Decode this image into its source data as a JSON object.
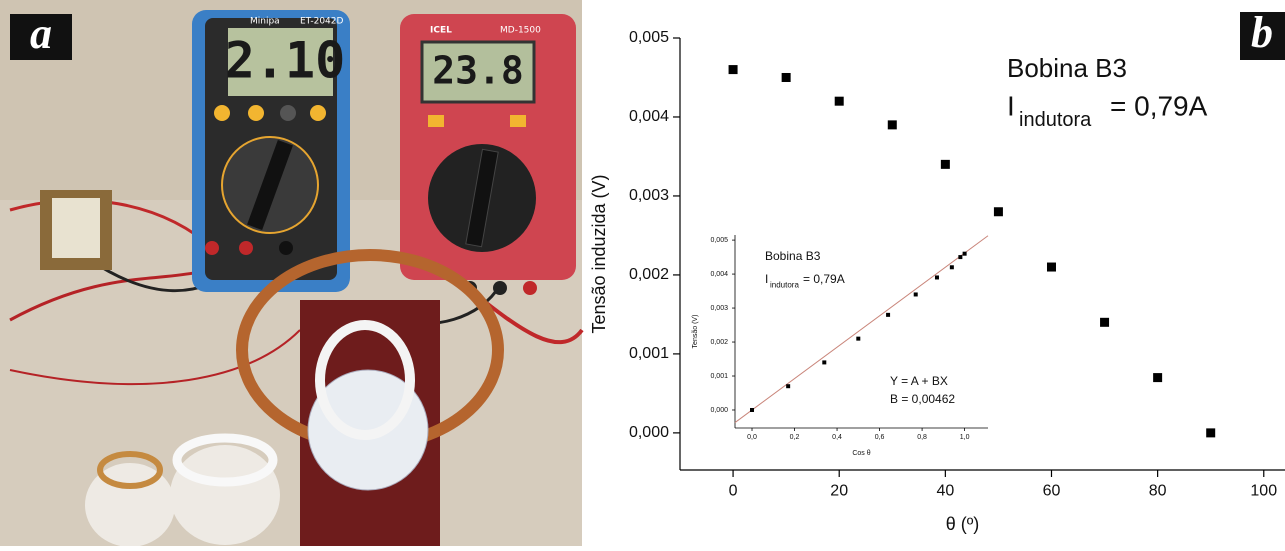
{
  "photo": {
    "label": "a",
    "display_left": "2.10",
    "display_right": "23.8",
    "brand_left": "Minipa",
    "model_left": "ET-2042D",
    "brand_right": "ICEL",
    "model_right": "MD-1500"
  },
  "chart_data": [
    {
      "type": "scatter",
      "panel_label": "b",
      "title": "Bobina B3",
      "annotation_symbol": "I",
      "annotation_subscript": "indutora",
      "annotation_value": "= 0,79A",
      "x_label": "θ (º)",
      "y_label": "Tensão induzida (V)",
      "x": [
        0,
        10,
        20,
        30,
        40,
        50,
        60,
        70,
        80,
        90
      ],
      "series": [
        {
          "color": "#000000",
          "values": [
            0.0046,
            0.0045,
            0.0042,
            0.0039,
            0.0034,
            0.0028,
            0.0021,
            0.0014,
            0.0007,
            0.0
          ]
        }
      ],
      "xlim": [
        -10,
        104
      ],
      "ylim": [
        -0.00047,
        0.005
      ],
      "xticks": [
        0,
        20,
        40,
        60,
        80,
        100
      ],
      "yticks": [
        {
          "value": 0.0,
          "label": "0,000"
        },
        {
          "value": 0.001,
          "label": "0,001"
        },
        {
          "value": 0.002,
          "label": "0,002"
        },
        {
          "value": 0.003,
          "label": "0,003"
        },
        {
          "value": 0.004,
          "label": "0,004"
        },
        {
          "value": 0.005,
          "label": "0,005"
        }
      ]
    },
    {
      "type": "scatter",
      "title": "Bobina B3",
      "annotation_symbol": "I",
      "annotation_subscript": "indutora",
      "annotation_value": "= 0,79A",
      "fit_equation": "Y = A + BX",
      "fit_slope": {
        "value": 0.00462,
        "label": "B = 0,00462"
      },
      "fit_color": "#c9857a",
      "x_label": "Cos θ",
      "y_label": "Tensão (V)",
      "x": [
        0.0,
        0.17,
        0.34,
        0.5,
        0.64,
        0.77,
        0.87,
        0.94,
        0.98,
        1.0
      ],
      "series": [
        {
          "color": "#000000",
          "values": [
            0.0,
            0.0007,
            0.0014,
            0.0021,
            0.0028,
            0.0034,
            0.0039,
            0.0042,
            0.0045,
            0.0046
          ]
        }
      ],
      "xlim": [
        -0.08,
        1.11
      ],
      "ylim": [
        -0.00053,
        0.00515
      ],
      "xticks": [
        {
          "value": 0.0,
          "label": "0,0"
        },
        {
          "value": 0.2,
          "label": "0,2"
        },
        {
          "value": 0.4,
          "label": "0,4"
        },
        {
          "value": 0.6,
          "label": "0,6"
        },
        {
          "value": 0.8,
          "label": "0,8"
        },
        {
          "value": 1.0,
          "label": "1,0"
        }
      ],
      "yticks": [
        {
          "value": 0.0,
          "label": "0,000"
        },
        {
          "value": 0.001,
          "label": "0,001"
        },
        {
          "value": 0.002,
          "label": "0,002"
        },
        {
          "value": 0.003,
          "label": "0,003"
        },
        {
          "value": 0.004,
          "label": "0,004"
        },
        {
          "value": 0.005,
          "label": "0,005"
        }
      ]
    }
  ]
}
